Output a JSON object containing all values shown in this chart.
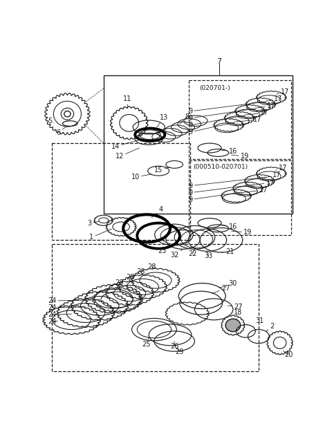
{
  "bg": "#ffffff",
  "fw": 4.8,
  "fh": 6.48,
  "dpi": 100,
  "lc": "#1a1a1a",
  "gray": "#888888"
}
